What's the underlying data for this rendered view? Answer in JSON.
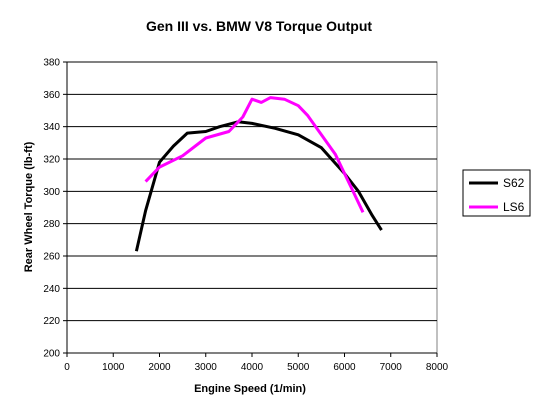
{
  "chart_data": {
    "type": "line",
    "title": "Gen III vs. BMW V8 Torque Output",
    "xlabel": "Engine Speed (1/min)",
    "ylabel": "Rear Wheel Torque (lb-ft)",
    "xlim": [
      0,
      8000
    ],
    "ylim": [
      200,
      380
    ],
    "xticks": [
      "0",
      "1000",
      "2000",
      "3000",
      "4000",
      "5000",
      "6000",
      "7000",
      "8000"
    ],
    "yticks": [
      "200",
      "220",
      "240",
      "260",
      "280",
      "300",
      "320",
      "340",
      "360",
      "380"
    ],
    "grid": "horizontal",
    "legend_position": "right",
    "series": [
      {
        "name": "S62",
        "color": "#000000",
        "x": [
          1500,
          1700,
          2000,
          2300,
          2600,
          3000,
          3300,
          3700,
          4000,
          4500,
          5000,
          5500,
          6000,
          6300,
          6600,
          6800
        ],
        "y": [
          263,
          288,
          318,
          328,
          336,
          337,
          340,
          343,
          342,
          339,
          335,
          327,
          311,
          300,
          285,
          276
        ]
      },
      {
        "name": "LS6",
        "color": "#ff00ff",
        "x": [
          1700,
          2000,
          2500,
          3000,
          3500,
          3800,
          4000,
          4200,
          4400,
          4700,
          5000,
          5200,
          5500,
          5800,
          6000,
          6200,
          6400
        ],
        "y": [
          306,
          315,
          322,
          333,
          337,
          346,
          357,
          355,
          358,
          357,
          353,
          347,
          335,
          323,
          311,
          299,
          287
        ]
      }
    ]
  }
}
